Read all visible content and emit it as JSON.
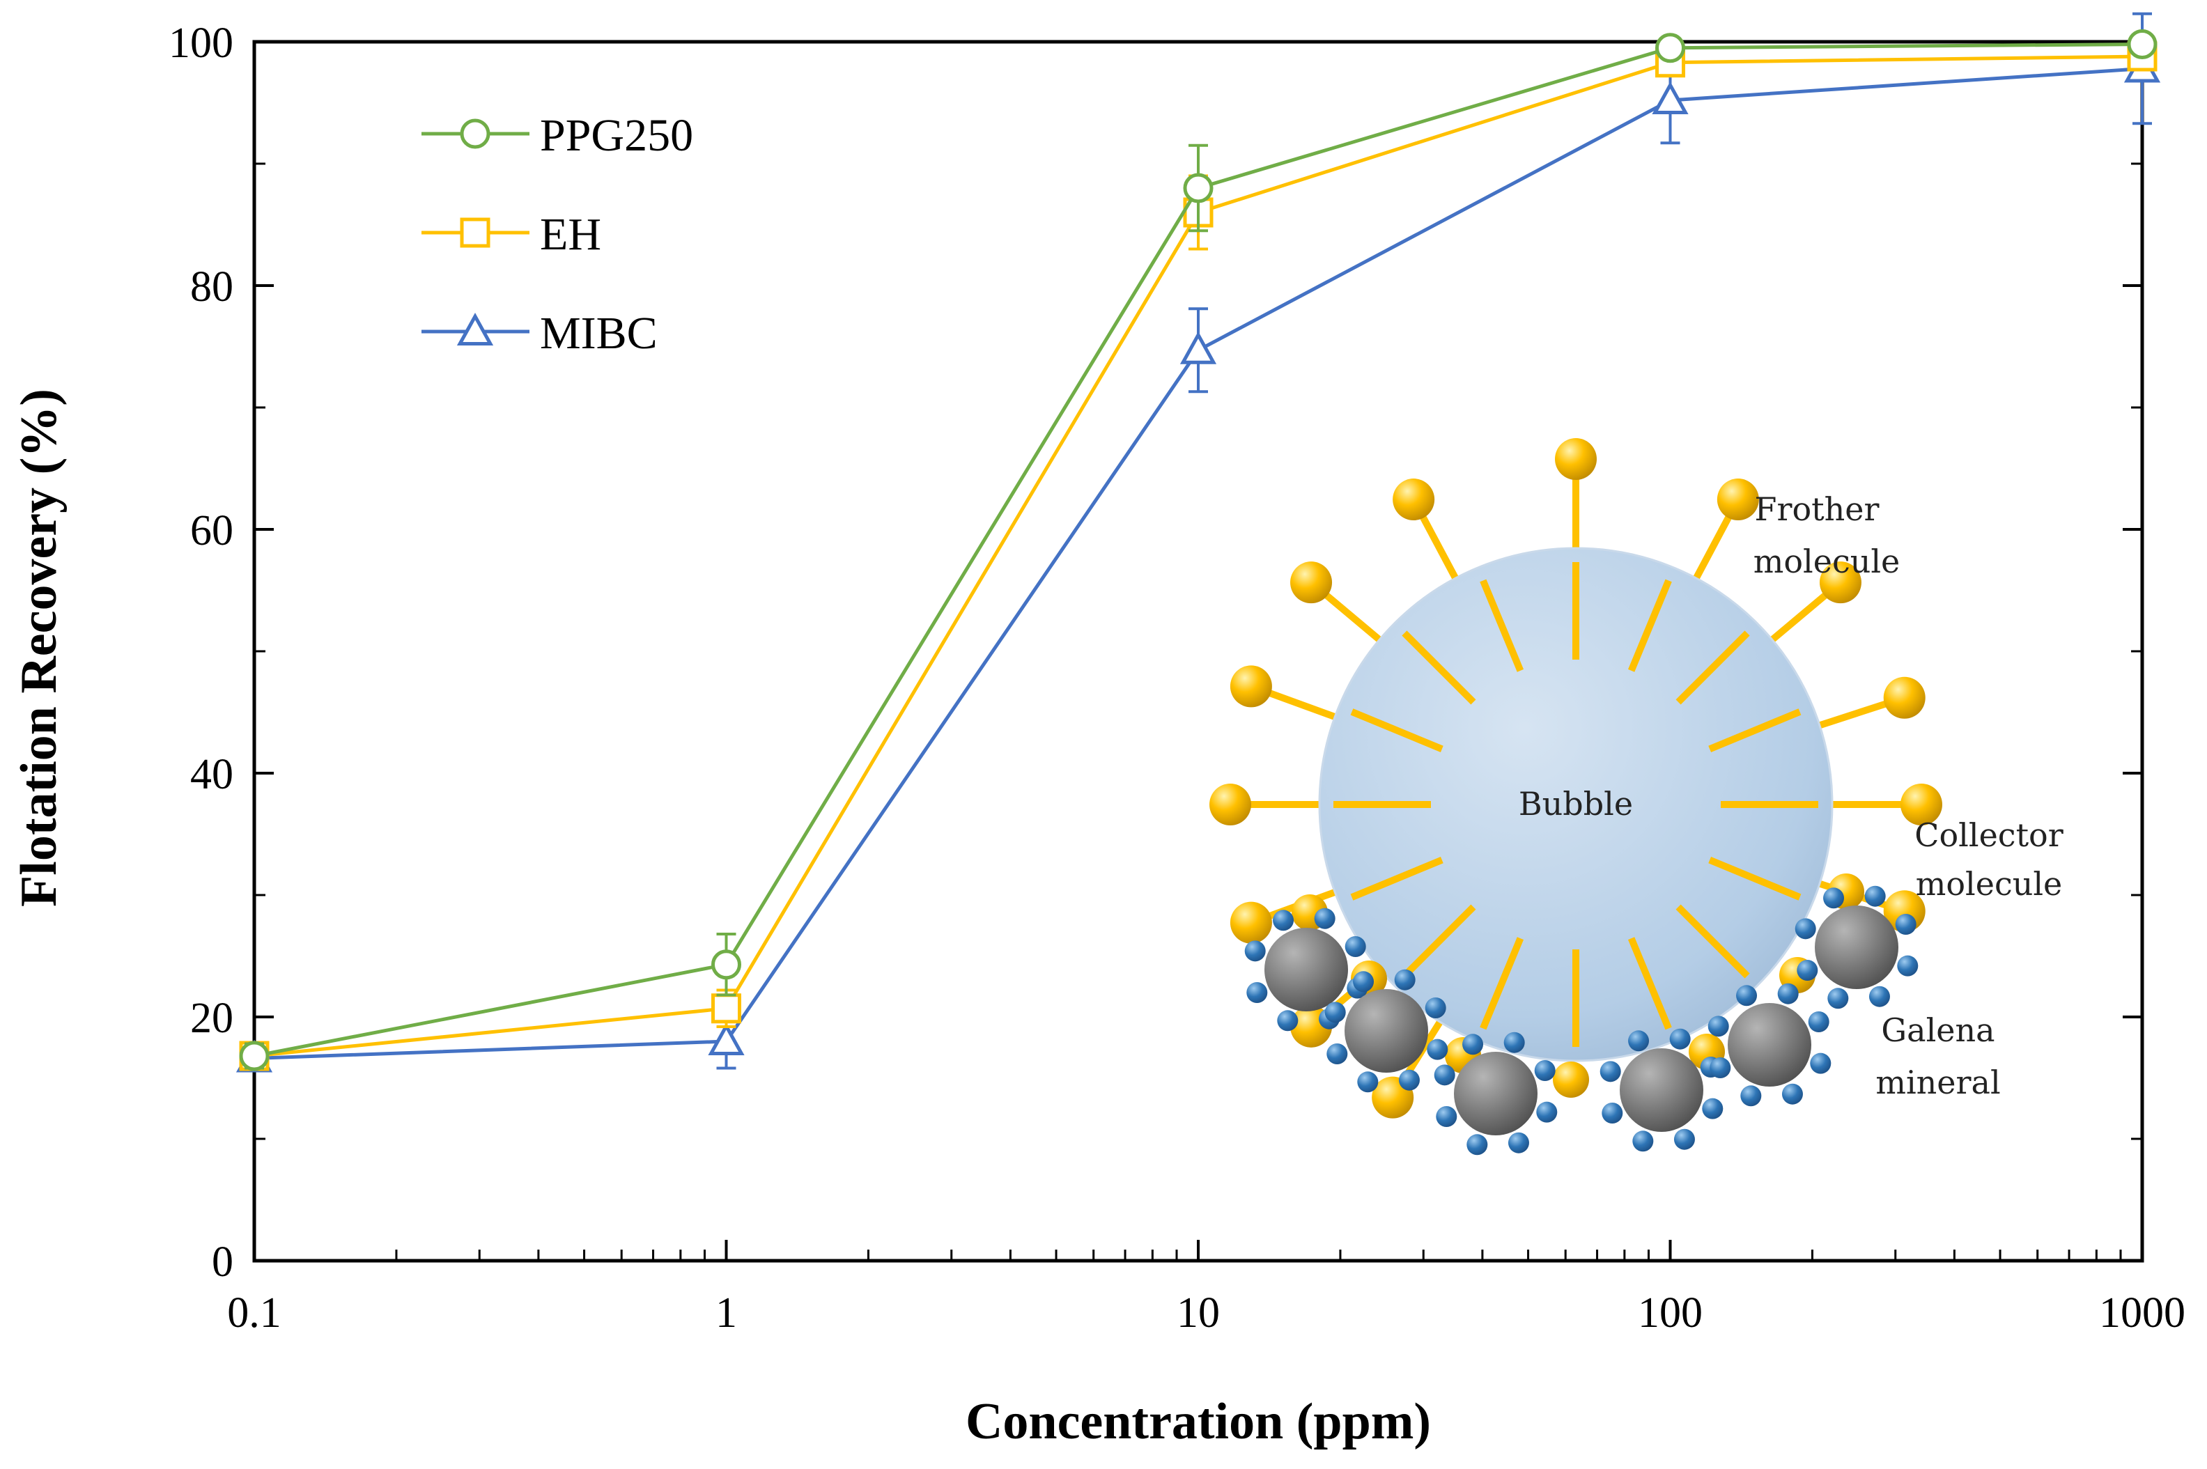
{
  "chart_data": {
    "type": "line",
    "title": "",
    "xlabel": "Concentration (ppm)",
    "ylabel": "Flotation Recovery (%)",
    "xscale": "log",
    "xlim": [
      0.1,
      1000
    ],
    "ylim": [
      0,
      100
    ],
    "x_ticks": [
      0.1,
      1,
      10,
      100,
      1000
    ],
    "x_tick_labels": [
      "0.1",
      "1",
      "10",
      "100",
      "1000"
    ],
    "y_ticks": [
      0,
      20,
      40,
      60,
      80,
      100
    ],
    "y_tick_labels": [
      "0",
      "20",
      "40",
      "60",
      "80",
      "100"
    ],
    "grid": false,
    "legend_position": "top-left",
    "x": [
      0.1,
      1,
      10,
      100,
      1000
    ],
    "series": [
      {
        "name": "PPG250",
        "marker": "circle",
        "color": "#70AD47",
        "values": [
          16.8,
          24.3,
          88.0,
          99.5,
          99.8
        ],
        "errors": [
          1.0,
          2.5,
          3.5,
          0.8,
          0.5
        ]
      },
      {
        "name": "EH",
        "marker": "square",
        "color": "#FFC000",
        "values": [
          16.8,
          20.7,
          86.0,
          98.3,
          98.8
        ],
        "errors": [
          1.0,
          1.5,
          3.0,
          1.0,
          0.6
        ]
      },
      {
        "name": "MIBC",
        "marker": "triangle",
        "color": "#4472C4",
        "values": [
          16.6,
          18.0,
          74.7,
          95.2,
          97.8
        ],
        "errors": [
          1.0,
          2.2,
          3.4,
          3.5,
          4.5
        ]
      }
    ],
    "annotations": {
      "bubble": "Bubble",
      "frother_line1": "Frother",
      "frother_line2": "molecule",
      "collector_line1": "Collector",
      "collector_line2": "molecule",
      "galena_line1": "Galena",
      "galena_line2": "mineral"
    },
    "inset_colors": {
      "bubble": "#B4CDE6",
      "frother": "#FFC000",
      "galena": "#7F7F7F",
      "collector": "#2E75B6"
    }
  }
}
